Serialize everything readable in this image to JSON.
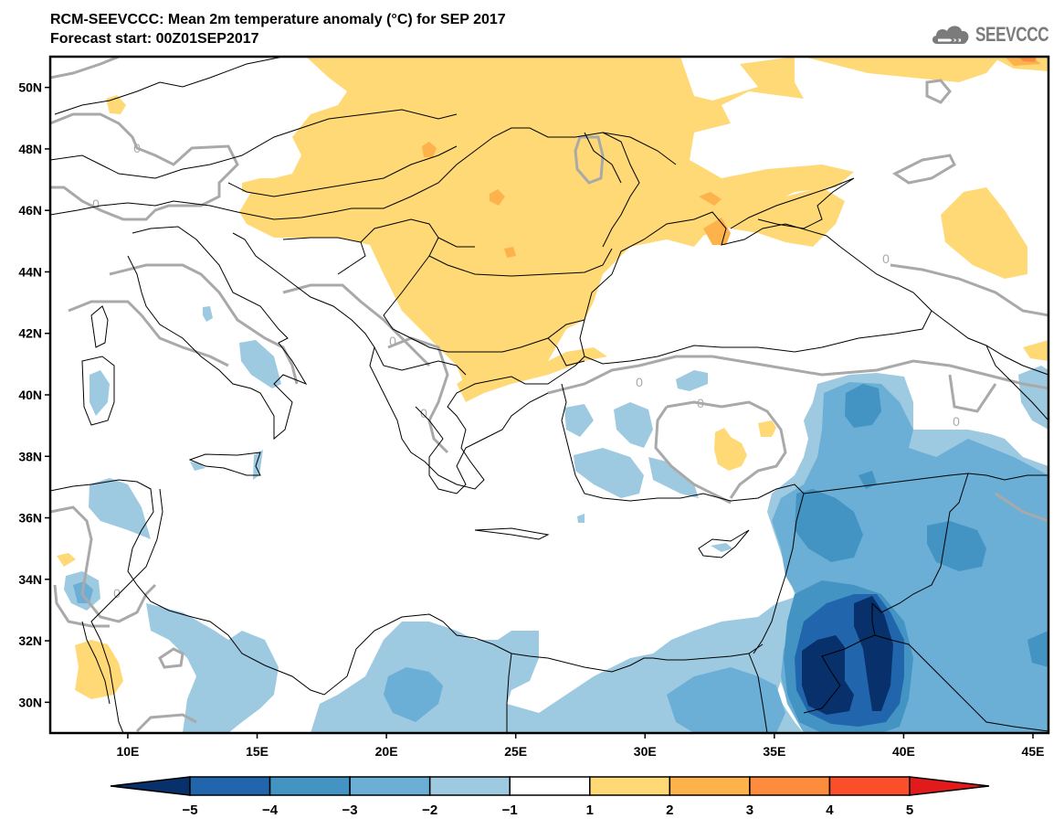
{
  "header": {
    "title": "RCM-SEEVCCC: Mean 2m temperature anomaly (°C) for SEP 2017",
    "subtitle": "Forecast start: 00Z01SEP2017",
    "logo_text": "SEEVCCC",
    "logo_icon": "cloud-icon"
  },
  "map": {
    "variable": "Mean 2m temperature anomaly",
    "units": "°C",
    "period": "SEP 2017",
    "lon_range": [
      7,
      45.6
    ],
    "lat_range": [
      29,
      51
    ],
    "x_ticks": [
      "10E",
      "15E",
      "20E",
      "25E",
      "30E",
      "35E",
      "40E",
      "45E"
    ],
    "x_tick_values": [
      10,
      15,
      20,
      25,
      30,
      35,
      40,
      45
    ],
    "y_ticks": [
      "50N",
      "48N",
      "46N",
      "44N",
      "42N",
      "40N",
      "38N",
      "36N",
      "34N",
      "32N",
      "30N"
    ],
    "y_tick_values": [
      50,
      48,
      46,
      44,
      42,
      40,
      38,
      36,
      34,
      32,
      30
    ],
    "zero_contour_label": "0",
    "features": {
      "coastlines": true,
      "country_borders": true,
      "zero_isoline_color": "#a9a9a9"
    }
  },
  "colorbar": {
    "levels": [
      "-5",
      "-4",
      "-3",
      "-2",
      "-1",
      "1",
      "2",
      "3",
      "4",
      "5"
    ],
    "colors": [
      "#08306b",
      "#2166ac",
      "#4393c3",
      "#6baed6",
      "#9ecae1",
      "#ffffff",
      "#fed976",
      "#feb24c",
      "#fd8d3c",
      "#fc4e2a",
      "#e31a1c"
    ],
    "extend": "both"
  }
}
